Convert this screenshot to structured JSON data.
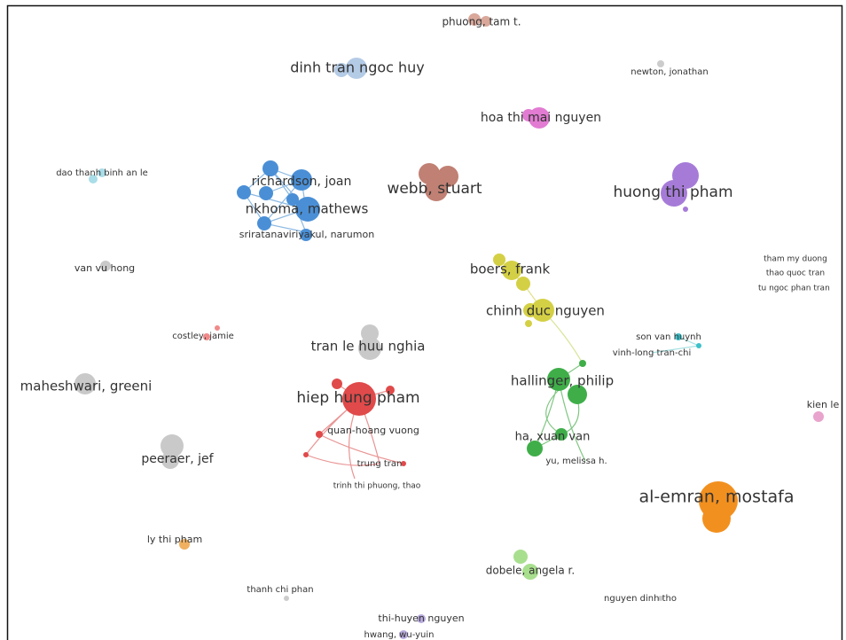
{
  "nodes": [
    {
      "label": "phuong, tam t."
    },
    {
      "label": "dinh tran ngoc huy"
    },
    {
      "label": "newton, jonathan"
    },
    {
      "label": "hoa thi mai nguyen"
    },
    {
      "label": "dao thanh binh an le"
    },
    {
      "label": "richardson, joan"
    },
    {
      "label": "nkhoma, mathews"
    },
    {
      "label": "sriratanaviriyakul, narumon"
    },
    {
      "label": "webb, stuart"
    },
    {
      "label": "huong thi pham"
    },
    {
      "label": "tham my duong"
    },
    {
      "label": "thao quoc tran"
    },
    {
      "label": "tu ngoc phan tran"
    },
    {
      "label": "van vu hong"
    },
    {
      "label": "boers, frank"
    },
    {
      "label": "chinh duc nguyen"
    },
    {
      "label": "costley, jamie"
    },
    {
      "label": "tran le huu nghia"
    },
    {
      "label": "son van huynh"
    },
    {
      "label": "vinh-long tran-chi"
    },
    {
      "label": "maheshwari, greeni"
    },
    {
      "label": "hallinger, philip"
    },
    {
      "label": "hiep hung pham"
    },
    {
      "label": "kien le"
    },
    {
      "label": "quan-hoang vuong"
    },
    {
      "label": "ha, xuan van"
    },
    {
      "label": "peeraer, jef"
    },
    {
      "label": "trung tran"
    },
    {
      "label": "yu, melissa h."
    },
    {
      "label": "trinh thi phuong, thao"
    },
    {
      "label": "al-emran, mostafa"
    },
    {
      "label": "ly thi pham"
    },
    {
      "label": "dobele, angela r."
    },
    {
      "label": "thanh chi phan"
    },
    {
      "label": "nguyen dinh tho"
    },
    {
      "label": "thi-huyen nguyen"
    },
    {
      "label": "hwang, wu-yuin"
    }
  ]
}
